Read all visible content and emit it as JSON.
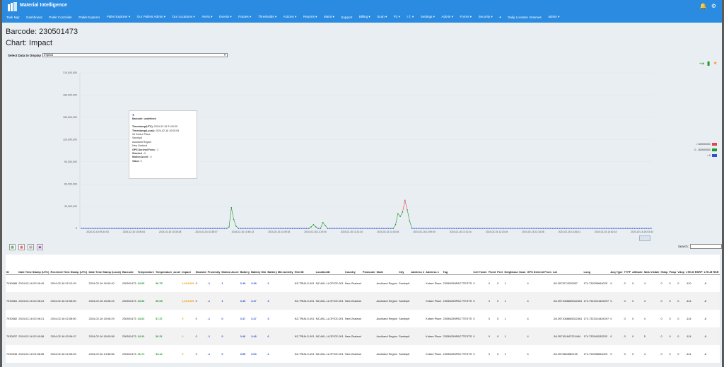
{
  "app": {
    "brand": "Material Intelligence",
    "nav": [
      "Task Mgr",
      "Dashboard",
      "Pallet Controller",
      "Pallet Explorer",
      "Pallet Explorer ▾",
      "Our Pallets Admin ▾",
      "Our Locations ▾",
      "Alerts ▾",
      "Events ▾",
      "Routes ▾",
      "Thresholds ▾",
      "Actions ▾",
      "Reports ▾",
      "Maint ▾",
      "Support",
      "Billing ▾",
      "Scan ▾",
      "P2 ▾",
      "I.T. ▾",
      "Settings ▾",
      "Admin ▾",
      "Forms ▾",
      "Security ▾",
      "▴",
      "Daily Location Volumes",
      "admin ▾"
    ]
  },
  "page": {
    "barcode_title": "Barcode: 230501473",
    "chart_title": "Chart: Impact",
    "select_label": "Select Data to Display",
    "select_value": "Impact"
  },
  "tooltip": {
    "barcode": "Barcode: undefined",
    "ts_utc_label": "Timestamp(UTC):",
    "ts_utc": "2024-02-15 21:00:05",
    "ts_local_label": "Timestamp(Local):",
    "ts_local": "2024-02-16 10:00:05",
    "addr1": "26 Kotare Place",
    "addr2": "Sandspit",
    "addr3": "Auckland Region",
    "addr4": "New Zealand",
    "gps_label": "GPS Derived From :",
    "gps": "1",
    "stacked_label": "Stacked :",
    "stacked": "0",
    "motion_label": "Motion Accel :",
    "motion": "0",
    "value_label": "Value:",
    "value": "0"
  },
  "legend": [
    {
      "label": "> 300000000",
      "color": "#e8434b"
    },
    {
      "label": "0 - 300000000",
      "color": "#1e9a2a"
    },
    {
      "label": "< 0",
      "color": "#2a52d0"
    }
  ],
  "chart_data": {
    "type": "line",
    "y_ticks": [
      "210,000,000",
      "180,000,000",
      "150,000,000",
      "120,000,000",
      "90,000,000",
      "60,000,000",
      "30,000,000",
      "0"
    ],
    "x_ticks": [
      "2024-02-16 09:34:03",
      "2024-02-16 10:00:04",
      "2024-02-16 10:35:28",
      "2024-02-16 10:38:07",
      "2024-02-16 10:46:13",
      "2024-02-16 11:09:34",
      "2024-02-16 11:19:04",
      "2024-02-16 11:31:34",
      "2024-02-16 11:43:04",
      "2024-02-16 11:59:04",
      "2024-02-16 12:11:04",
      "2024-02-16 12:23:04",
      "2024-02-16 12:34:36",
      "2024-02-16 14:36:41",
      "2024-02-16 14:52:44",
      "2024-02-16 15:03:34"
    ],
    "ylim": [
      0,
      210000000
    ],
    "values": [
      0,
      0,
      0,
      0,
      0,
      0,
      0,
      0,
      0,
      0,
      0,
      0,
      0,
      0,
      0,
      0,
      0,
      0,
      0,
      0,
      0,
      0,
      0,
      0,
      0,
      0,
      0,
      0,
      0,
      0,
      0,
      0,
      0,
      0,
      0,
      0,
      0,
      0,
      0,
      0,
      0,
      0,
      0,
      0,
      0,
      0,
      0,
      0,
      0,
      0,
      0,
      0,
      0,
      0,
      0,
      0,
      0,
      0,
      0,
      0,
      0,
      0,
      0,
      2000000,
      28000000,
      12000000,
      3000000,
      0,
      0,
      0,
      0,
      0,
      0,
      0,
      0,
      0,
      0,
      0,
      0,
      0,
      0,
      0,
      0,
      0,
      0,
      0,
      0,
      0,
      0,
      0,
      0,
      0,
      0,
      0,
      0,
      0,
      0,
      0,
      2000000,
      5000000,
      2000000,
      0,
      0,
      8000000,
      4000000,
      0,
      0,
      0,
      0,
      0,
      0,
      0,
      0,
      0,
      0,
      0,
      0,
      0,
      0,
      0,
      0,
      0,
      0,
      0,
      0,
      0,
      0,
      0,
      0,
      0,
      0,
      0,
      0,
      0,
      5000000,
      20000000,
      16000000,
      22000000,
      38000000,
      25000000,
      10000000,
      0,
      0,
      0,
      0,
      0,
      0,
      0,
      0,
      0,
      0,
      0,
      0,
      0,
      0,
      0,
      0,
      0,
      0,
      0,
      0,
      0,
      0,
      0,
      0,
      0,
      0,
      0,
      0,
      0,
      0,
      0,
      0,
      0,
      0,
      0,
      0,
      0,
      0,
      0,
      0,
      0,
      0,
      0,
      0,
      0,
      0,
      0,
      0,
      0,
      0,
      0,
      0,
      0,
      0,
      0,
      0,
      0,
      0,
      0,
      0,
      0,
      0,
      0,
      0,
      0,
      0,
      0,
      0,
      0,
      0,
      0,
      0,
      0,
      0,
      0,
      0,
      0,
      0,
      0,
      0,
      0,
      0,
      0,
      0,
      0,
      0,
      0,
      0,
      0,
      0,
      0,
      0,
      0,
      0,
      0,
      0,
      0,
      0,
      0,
      0,
      0,
      0,
      0
    ]
  },
  "table": {
    "headers": [
      "ID",
      "Date Time Stamp (UTC)",
      "Received Time Stamp (UTC)",
      "Date Time Stamp (Local)",
      "Barcode",
      "Temperature",
      "Temperature_accel",
      "Impact",
      "Stacked",
      "Proximity",
      "Motion Accel",
      "Battery",
      "Battery Min",
      "Battery Min Activity",
      "HirerID",
      "LocationID",
      "Country",
      "Postcode",
      "State",
      "City",
      "Address 2",
      "Address 1",
      "Tag",
      "Cell Tower",
      "Fixed",
      "Peer",
      "Neighbour Scan",
      "GPS Derived From",
      "Lat",
      "Long",
      "Acq Type",
      "TTFF",
      "Altitude",
      "Sats Visible",
      "Hdop",
      "Pdop",
      "Vdop",
      "LTE-M RSRP",
      "LTE-M RSR"
    ],
    "rows": [
      [
        "7930686",
        "2024-02-16 02:09:40",
        "2024-02-16 02:12:09",
        "2024-02-16 15:09:40",
        "230501473",
        "34.05",
        "36.75",
        "1,024,000",
        "0",
        "-1",
        "1",
        "3.49",
        "3.48",
        "2",
        "NZ-TRIALS-001",
        "NZ-AKL-LLOFICE-001",
        "New Zealand",
        "",
        "Auckland Region",
        "Sandspit",
        "",
        "Kotare Place",
        "2305NZIMPACTTESTS",
        "0",
        "0",
        "0",
        "1",
        "4",
        "-36.3973274230957",
        "174.732055664025",
        "0",
        "0",
        "0",
        "4",
        "0",
        "0",
        "0",
        "-110",
        "-8"
      ],
      [
        "7930581",
        "2024-02-16 02:08:24",
        "2024-02-16 02:08:50",
        "2024-02-16 15:08:24",
        "230501473",
        "33.96",
        "36.08",
        "1,024,000",
        "0",
        "-1",
        "1",
        "3.49",
        "3.47",
        "3",
        "NZ-TRIALS-001",
        "NZ-AKL-LLOFICE-001",
        "New Zealand",
        "",
        "Auckland Region",
        "Sandspit",
        "",
        "Kotare Place",
        "2305NZIMPACTTESTS",
        "0",
        "0",
        "0",
        "1",
        "4",
        "-36.3971066665322461",
        "174.7321014404297",
        "0",
        "0",
        "0",
        "4",
        "0",
        "0",
        "0",
        "-114",
        "-8"
      ],
      [
        "7930582",
        "2024-02-16 02:06:21",
        "2024-02-16 02:08:50",
        "2024-02-16 15:06:29",
        "230501473",
        "34.02",
        "37.37",
        "0",
        "0",
        "-1",
        "0",
        "3.47",
        "3.47",
        "3",
        "NZ-TRIALS-001",
        "NZ-AKL-LLOFICE-001",
        "New Zealand",
        "",
        "Auckland Region",
        "Sandspit",
        "",
        "Kotare Place",
        "2305NZIMPACTTESTS",
        "0",
        "0",
        "0",
        "1",
        "4",
        "-36.3971068665322461",
        "174.7321014404297",
        "0",
        "0",
        "0",
        "4",
        "0",
        "0",
        "0",
        "-114",
        "-8"
      ],
      [
        "7930537",
        "2024-02-16 02:00:56",
        "2024-02-16 02:06:07",
        "2024-02-16 15:00:58",
        "230501473",
        "34.23",
        "36.31",
        "0",
        "0",
        "-1",
        "0",
        "3.46",
        "3.48",
        "6",
        "NZ-TRIALS-001",
        "NZ-AKL-LLOFICE-001",
        "New Zealand",
        "",
        "Auckland Region",
        "Sandspit",
        "",
        "Kotare Place",
        "2305NZIMPACTTESTS",
        "0",
        "0",
        "0",
        "1",
        "4",
        "-36.397151847221484",
        "174.732540283203",
        "0",
        "0",
        "0",
        "5",
        "0",
        "0",
        "0",
        "-114",
        "-8"
      ],
      [
        "7930445",
        "2024-02-16 01:58:56",
        "2024-02-16 02:06:53",
        "2024-02-16 14:58:56",
        "230501473",
        "31.71",
        "34.12",
        "0",
        "0",
        "-1",
        "0",
        "3.55",
        "3.54",
        "2",
        "NZ-TRIALS-001",
        "NZ-AKL-LLOFICE-001",
        "New Zealand",
        "",
        "Auckland Region",
        "Sandspit",
        "",
        "Kotare Place",
        "2305NZIMPACTTESTS",
        "0",
        "0",
        "0",
        "1",
        "4",
        "-36.3973884582195",
        "174.732055664025",
        "0",
        "0",
        "0",
        "4",
        "0",
        "0",
        "0",
        "-114",
        "-8"
      ]
    ]
  },
  "search_label": "Search:"
}
